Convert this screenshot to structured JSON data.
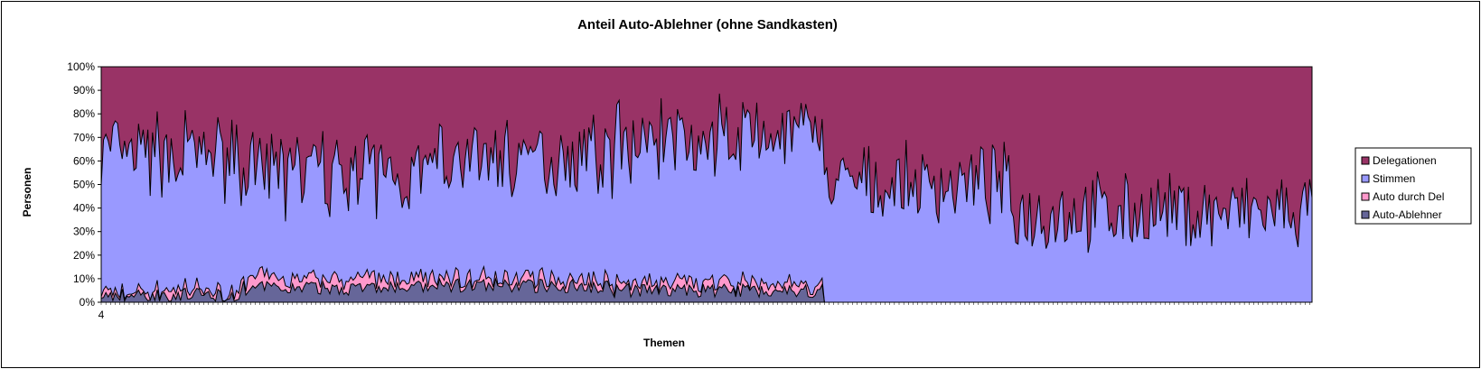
{
  "chart_data": {
    "type": "area",
    "stacked": "percent",
    "title": "Anteil Auto-Ablehner (ohne Sandkasten)",
    "xlabel": "Themen",
    "ylabel": "Personen",
    "ylim": [
      0,
      100
    ],
    "y_ticks": [
      "0%",
      "10%",
      "20%",
      "30%",
      "40%",
      "50%",
      "60%",
      "70%",
      "80%",
      "90%",
      "100%"
    ],
    "first_x_label": "4",
    "x_count": 520,
    "legend": {
      "placement": "right"
    },
    "colors": {
      "Delegationen": "#993366",
      "Stimmen": "#9999ff",
      "Auto durch Del": "#ff99cc",
      "Auto-Ablehner": "#666699"
    },
    "series": [
      {
        "name": "Delegationen",
        "approx_share_pct": {
          "topics_1_60": 36,
          "topics_60_145": 48,
          "topics_145_220": 38,
          "topics_220_310": 30,
          "topics_310_390": 55,
          "topics_390_520": 62
        }
      },
      {
        "name": "Stimmen",
        "approx_share_pct": {
          "topics_1_60": 57,
          "topics_60_145": 42,
          "topics_145_220": 52,
          "topics_220_310": 62,
          "topics_310_390": 45,
          "topics_390_520": 38
        }
      },
      {
        "name": "Auto durch Del",
        "approx_share_pct": {
          "topics_1_60": 2,
          "topics_60_145": 4,
          "topics_145_220": 3,
          "topics_220_310": 3,
          "topics_310_390": 0,
          "topics_390_520": 0
        }
      },
      {
        "name": "Auto-Ablehner",
        "approx_share_pct": {
          "topics_1_60": 3,
          "topics_60_145": 6,
          "topics_145_220": 7,
          "topics_220_310": 5,
          "topics_310_390": 0,
          "topics_390_520": 0
        }
      }
    ]
  }
}
